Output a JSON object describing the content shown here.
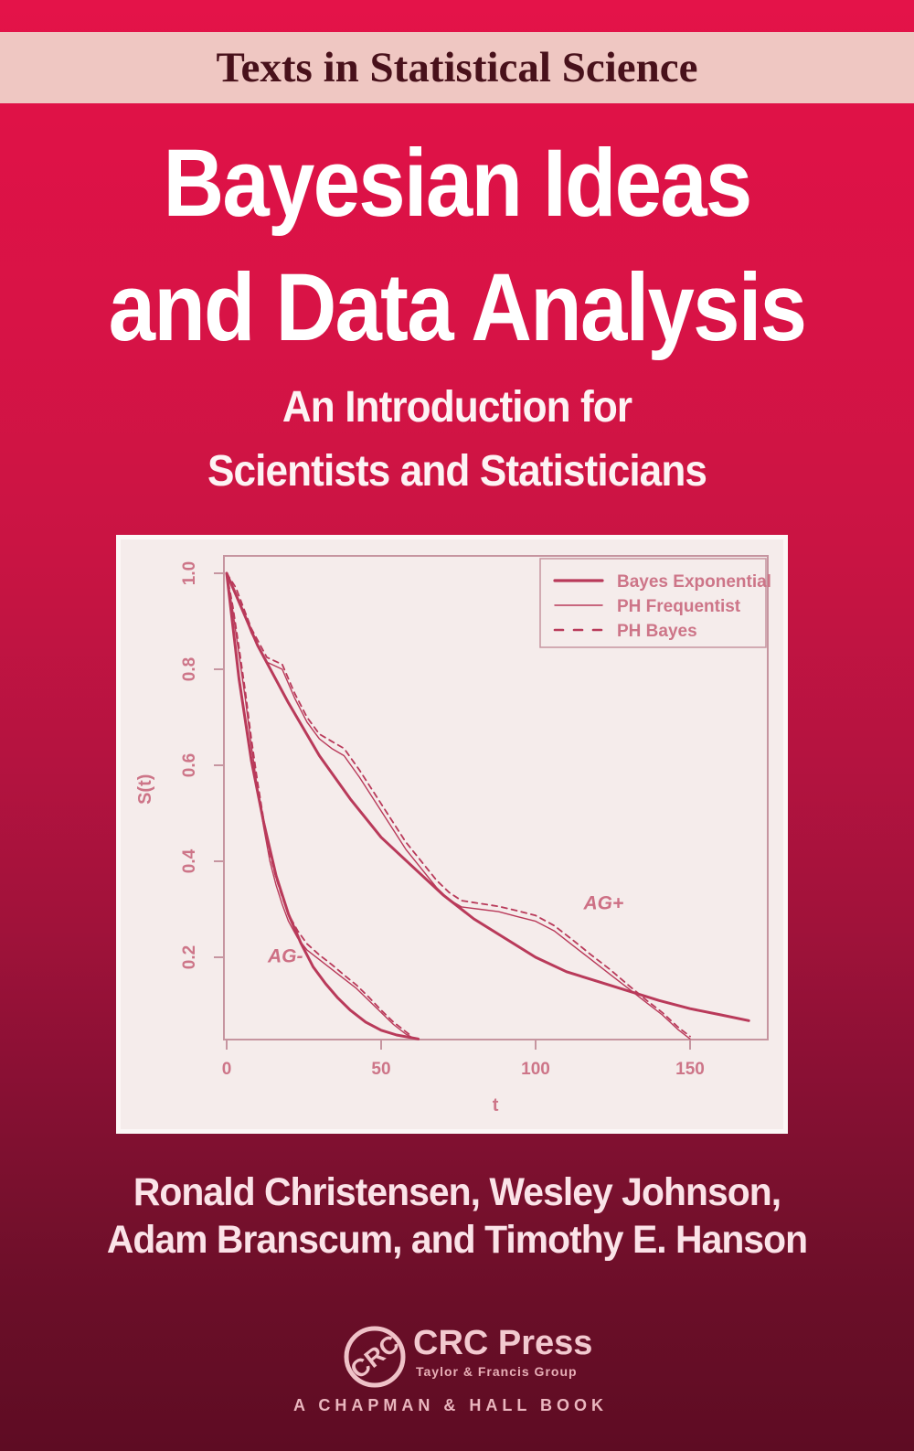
{
  "series_banner": {
    "label": "Texts in Statistical Science"
  },
  "title": {
    "line1": "Bayesian Ideas",
    "line2": "and Data Analysis"
  },
  "subtitle": {
    "line1": "An Introduction for",
    "line2": "Scientists and Statisticians"
  },
  "authors": {
    "line1": "Ronald Christensen, Wesley Johnson,",
    "line2": "Adam Branscum, and Timothy E. Hanson"
  },
  "publisher": {
    "logo_monogram": "CRC",
    "imprint": "CRC Press",
    "group": "Taylor & Francis Group",
    "tagline": "A CHAPMAN & HALL BOOK"
  },
  "colors": {
    "cover_top_red": "#e41349",
    "cover_bottom_maroon": "#5e0c23",
    "banner_pink": "#efc7c2",
    "banner_text": "#48111b",
    "panel_background": "#f5eceb",
    "chart_line": "#b93a5a",
    "chart_frame": "#c695a0",
    "chart_text": "#cd7588",
    "annotation_text": "#cd6f84"
  },
  "chart_data": {
    "type": "line",
    "title": "",
    "xlabel": "t",
    "ylabel": "S(t)",
    "xlim": [
      0,
      175
    ],
    "ylim": [
      0,
      1.02
    ],
    "xticks": [
      0,
      50,
      100,
      150
    ],
    "yticks": [
      0.2,
      0.4,
      0.6,
      0.8,
      1.0
    ],
    "grid": false,
    "legend": {
      "position": "top-right",
      "entries": [
        {
          "label": "Bayes Exponential",
          "style": "thick-solid"
        },
        {
          "label": "PH Frequentist",
          "style": "thin-solid"
        },
        {
          "label": "PH Bayes",
          "style": "dashed"
        }
      ]
    },
    "annotations": [
      {
        "text": "AG-",
        "t": 19,
        "s": 0.19
      },
      {
        "text": "AG+",
        "t": 122,
        "s": 0.3
      }
    ],
    "series": [
      {
        "name": "Bayes Exponential AG-",
        "group": "AG-",
        "style": "thick-solid",
        "points": [
          [
            0,
            1.0
          ],
          [
            4,
            0.78
          ],
          [
            8,
            0.61
          ],
          [
            12,
            0.48
          ],
          [
            16,
            0.37
          ],
          [
            20,
            0.29
          ],
          [
            24,
            0.23
          ],
          [
            28,
            0.18
          ],
          [
            32,
            0.145
          ],
          [
            36,
            0.115
          ],
          [
            40,
            0.09
          ],
          [
            45,
            0.065
          ],
          [
            50,
            0.048
          ],
          [
            55,
            0.038
          ],
          [
            62,
            0.03
          ]
        ]
      },
      {
        "name": "PH Frequentist AG-",
        "group": "AG-",
        "style": "thin-solid",
        "points": [
          [
            0,
            1.0
          ],
          [
            2,
            0.92
          ],
          [
            4,
            0.83
          ],
          [
            6,
            0.74
          ],
          [
            8,
            0.64
          ],
          [
            10,
            0.55
          ],
          [
            12,
            0.47
          ],
          [
            14,
            0.4
          ],
          [
            16,
            0.35
          ],
          [
            18,
            0.31
          ],
          [
            20,
            0.275
          ],
          [
            23,
            0.24
          ],
          [
            26,
            0.215
          ],
          [
            30,
            0.195
          ],
          [
            34,
            0.175
          ],
          [
            38,
            0.155
          ],
          [
            42,
            0.135
          ],
          [
            46,
            0.11
          ],
          [
            50,
            0.085
          ],
          [
            54,
            0.06
          ],
          [
            58,
            0.04
          ],
          [
            61,
            0.03
          ]
        ]
      },
      {
        "name": "PH Bayes AG-",
        "group": "AG-",
        "style": "dashed",
        "points": [
          [
            0,
            1.0
          ],
          [
            2,
            0.93
          ],
          [
            4,
            0.845
          ],
          [
            6,
            0.755
          ],
          [
            8,
            0.655
          ],
          [
            10,
            0.565
          ],
          [
            12,
            0.485
          ],
          [
            14,
            0.415
          ],
          [
            16,
            0.365
          ],
          [
            18,
            0.325
          ],
          [
            20,
            0.29
          ],
          [
            23,
            0.255
          ],
          [
            26,
            0.228
          ],
          [
            30,
            0.205
          ],
          [
            34,
            0.185
          ],
          [
            38,
            0.163
          ],
          [
            42,
            0.142
          ],
          [
            46,
            0.117
          ],
          [
            50,
            0.09
          ],
          [
            54,
            0.065
          ],
          [
            58,
            0.045
          ],
          [
            60,
            0.035
          ]
        ]
      },
      {
        "name": "Bayes Exponential AG+",
        "group": "AG+",
        "style": "thick-solid",
        "points": [
          [
            0,
            1.0
          ],
          [
            10,
            0.85
          ],
          [
            20,
            0.73
          ],
          [
            30,
            0.62
          ],
          [
            40,
            0.53
          ],
          [
            50,
            0.45
          ],
          [
            60,
            0.39
          ],
          [
            70,
            0.33
          ],
          [
            80,
            0.28
          ],
          [
            90,
            0.24
          ],
          [
            100,
            0.2
          ],
          [
            110,
            0.17
          ],
          [
            120,
            0.15
          ],
          [
            130,
            0.13
          ],
          [
            140,
            0.11
          ],
          [
            150,
            0.093
          ],
          [
            160,
            0.08
          ],
          [
            169,
            0.068
          ]
        ]
      },
      {
        "name": "PH Frequentist AG+",
        "group": "AG+",
        "style": "thin-solid",
        "points": [
          [
            0,
            1.0
          ],
          [
            3,
            0.96
          ],
          [
            8,
            0.875
          ],
          [
            13,
            0.815
          ],
          [
            18,
            0.8
          ],
          [
            22,
            0.74
          ],
          [
            26,
            0.69
          ],
          [
            30,
            0.655
          ],
          [
            34,
            0.635
          ],
          [
            38,
            0.62
          ],
          [
            43,
            0.575
          ],
          [
            48,
            0.525
          ],
          [
            53,
            0.475
          ],
          [
            58,
            0.425
          ],
          [
            63,
            0.385
          ],
          [
            68,
            0.345
          ],
          [
            72,
            0.32
          ],
          [
            76,
            0.305
          ],
          [
            82,
            0.3
          ],
          [
            88,
            0.295
          ],
          [
            94,
            0.285
          ],
          [
            100,
            0.275
          ],
          [
            106,
            0.255
          ],
          [
            112,
            0.225
          ],
          [
            118,
            0.195
          ],
          [
            124,
            0.165
          ],
          [
            130,
            0.135
          ],
          [
            136,
            0.105
          ],
          [
            141,
            0.08
          ],
          [
            146,
            0.05
          ],
          [
            150,
            0.03
          ]
        ]
      },
      {
        "name": "PH Bayes AG+",
        "group": "AG+",
        "style": "dashed",
        "points": [
          [
            0,
            1.0
          ],
          [
            3,
            0.97
          ],
          [
            8,
            0.885
          ],
          [
            13,
            0.825
          ],
          [
            18,
            0.81
          ],
          [
            22,
            0.75
          ],
          [
            26,
            0.7
          ],
          [
            30,
            0.665
          ],
          [
            34,
            0.65
          ],
          [
            38,
            0.635
          ],
          [
            43,
            0.59
          ],
          [
            48,
            0.54
          ],
          [
            53,
            0.49
          ],
          [
            58,
            0.44
          ],
          [
            63,
            0.4
          ],
          [
            68,
            0.36
          ],
          [
            72,
            0.335
          ],
          [
            76,
            0.318
          ],
          [
            82,
            0.312
          ],
          [
            88,
            0.306
          ],
          [
            94,
            0.297
          ],
          [
            100,
            0.287
          ],
          [
            106,
            0.266
          ],
          [
            112,
            0.236
          ],
          [
            118,
            0.205
          ],
          [
            124,
            0.175
          ],
          [
            130,
            0.142
          ],
          [
            136,
            0.11
          ],
          [
            141,
            0.085
          ],
          [
            146,
            0.055
          ],
          [
            150,
            0.035
          ]
        ]
      }
    ]
  }
}
